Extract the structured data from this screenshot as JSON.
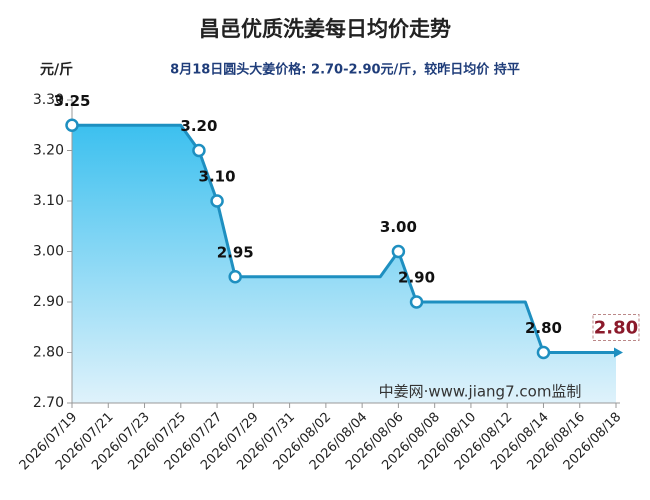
{
  "chart_data": {
    "type": "line",
    "title": "昌邑优质洗姜每日均价走势",
    "y_axis_label": "元/斤",
    "subtitle": "8月18日圆头大姜价格: 2.70-2.90元/斤，较昨日均价 持平",
    "annotation": "中姜网·www.jiang7.com监制",
    "categories": [
      "2026/07/19",
      null,
      "2026/07/21",
      null,
      "2026/07/23",
      null,
      "2026/07/25",
      null,
      "2026/07/27",
      null,
      "2026/07/29",
      null,
      "2026/07/31",
      null,
      "2026/08/02",
      null,
      "2026/08/04",
      null,
      "2026/08/06",
      null,
      "2026/08/08",
      null,
      "2026/08/10",
      null,
      "2026/08/12",
      null,
      "2026/08/14",
      null,
      "2026/08/16",
      null,
      "2026/08/18"
    ],
    "values": [
      3.25,
      3.25,
      3.25,
      3.25,
      3.25,
      3.25,
      3.25,
      3.2,
      3.1,
      2.95,
      2.95,
      2.95,
      2.95,
      2.95,
      2.95,
      2.95,
      2.95,
      2.95,
      3.0,
      2.9,
      2.9,
      2.9,
      2.9,
      2.9,
      2.9,
      2.9,
      2.8,
      2.8,
      2.8,
      2.8,
      2.8
    ],
    "value_labels": [
      "3.25",
      null,
      null,
      null,
      null,
      null,
      null,
      "3.20",
      "3.10",
      "2.95",
      null,
      null,
      null,
      null,
      null,
      null,
      null,
      null,
      "3.00",
      "2.90",
      null,
      null,
      null,
      null,
      null,
      null,
      "2.80",
      null,
      null,
      null,
      "2.80"
    ],
    "color": "#1e8fc0",
    "ylim": [
      2.7,
      3.3
    ],
    "yticks": [
      {
        "value": 2.7,
        "label": "2.70"
      },
      {
        "value": 2.8,
        "label": "2.80"
      },
      {
        "value": 2.9,
        "label": "2.90"
      },
      {
        "value": 3.0,
        "label": "3.00"
      },
      {
        "value": 3.1,
        "label": "3.10"
      },
      {
        "value": 3.2,
        "label": "3.20"
      },
      {
        "value": 3.3,
        "label": "3.30"
      }
    ],
    "grid": false
  }
}
